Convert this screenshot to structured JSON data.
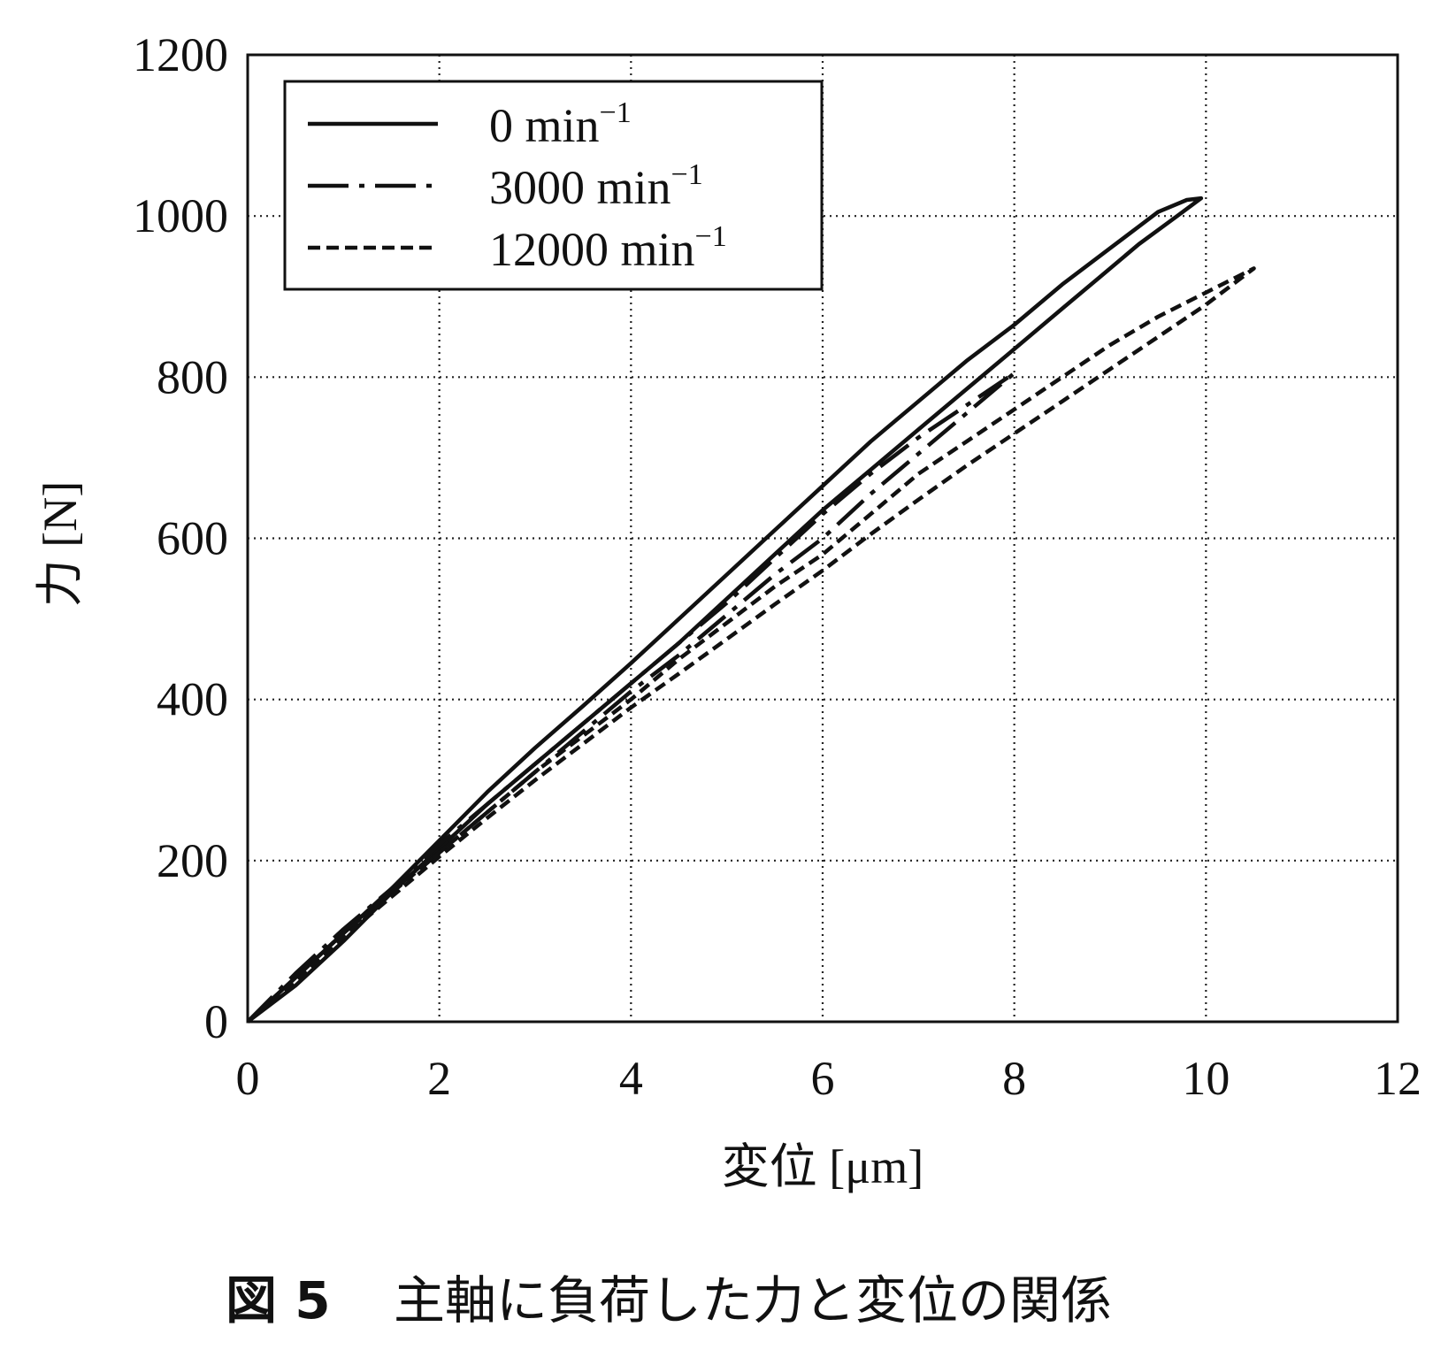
{
  "caption": {
    "number": "図 5",
    "text": "主軸に負荷した力と変位の関係"
  },
  "chart_data": {
    "type": "line",
    "xlabel": "変位 [μm]",
    "ylabel": "力 [N]",
    "xlim": [
      0,
      12
    ],
    "ylim": [
      0,
      1200
    ],
    "xticks": [
      "0",
      "2",
      "4",
      "6",
      "8",
      "10",
      "12"
    ],
    "yticks": [
      "0",
      "200",
      "400",
      "600",
      "800",
      "1000",
      "1200"
    ],
    "grid": true,
    "legend_position": "top-left",
    "legend": [
      {
        "label_main": "0 min",
        "label_sup": "−1",
        "style": "solid"
      },
      {
        "label_main": "3000 min",
        "label_sup": "−1",
        "style": "dash-dot"
      },
      {
        "label_main": "12000 min",
        "label_sup": "−1",
        "style": "dashed"
      }
    ],
    "series": [
      {
        "name": "0 min−1",
        "style": "solid",
        "x": [
          0,
          0.5,
          1,
          1.5,
          2,
          2.5,
          3,
          3.5,
          4,
          4.5,
          5,
          5.5,
          6,
          6.5,
          7,
          7.5,
          8,
          8.5,
          9,
          9.5,
          9.8,
          9.95,
          9.7,
          9.3,
          8.9,
          8.5,
          8,
          7.5,
          7,
          6.5,
          6,
          5.5,
          5,
          4.5,
          4,
          3.5,
          3,
          2.5,
          2,
          1.5,
          1,
          0.5,
          0
        ],
        "y": [
          0,
          55,
          110,
          165,
          225,
          285,
          340,
          392,
          445,
          500,
          555,
          610,
          665,
          720,
          770,
          820,
          865,
          915,
          960,
          1005,
          1020,
          1022,
          1000,
          965,
          925,
          885,
          835,
          785,
          735,
          685,
          635,
          580,
          525,
          470,
          420,
          370,
          320,
          270,
          215,
          160,
          100,
          45,
          0
        ]
      },
      {
        "name": "3000 min−1",
        "style": "dash-dot",
        "x": [
          0,
          0.5,
          1,
          1.5,
          2,
          2.5,
          3,
          3.5,
          4,
          4.5,
          5,
          5.5,
          6,
          6.5,
          7,
          7.5,
          8,
          7.5,
          7,
          6.5,
          6,
          5.5,
          5,
          4.5,
          4,
          3.5,
          3,
          2.5,
          2,
          1.5,
          1,
          0.5,
          0
        ],
        "y": [
          0,
          60,
          115,
          165,
          220,
          270,
          320,
          370,
          420,
          470,
          520,
          575,
          630,
          680,
          725,
          765,
          805,
          755,
          705,
          655,
          600,
          555,
          505,
          455,
          410,
          360,
          310,
          260,
          210,
          160,
          110,
          55,
          0
        ]
      },
      {
        "name": "12000 min−1",
        "style": "dashed",
        "x": [
          0,
          0.5,
          1,
          1.5,
          2,
          2.5,
          3,
          3.5,
          4,
          4.5,
          5,
          5.5,
          6,
          6.5,
          7,
          7.5,
          8,
          8.5,
          9,
          9.5,
          10,
          10.5,
          10,
          9.5,
          9,
          8.5,
          8,
          7.5,
          7,
          6.5,
          6,
          5.5,
          5,
          4.5,
          4,
          3.5,
          3,
          2.5,
          2,
          1.5,
          1,
          0.5,
          0
        ],
        "y": [
          0,
          55,
          110,
          160,
          210,
          260,
          310,
          355,
          400,
          450,
          495,
          540,
          580,
          630,
          680,
          720,
          760,
          800,
          840,
          875,
          905,
          935,
          890,
          850,
          810,
          770,
          730,
          690,
          648,
          605,
          560,
          518,
          475,
          432,
          390,
          345,
          300,
          253,
          205,
          155,
          105,
          50,
          0
        ]
      }
    ]
  }
}
